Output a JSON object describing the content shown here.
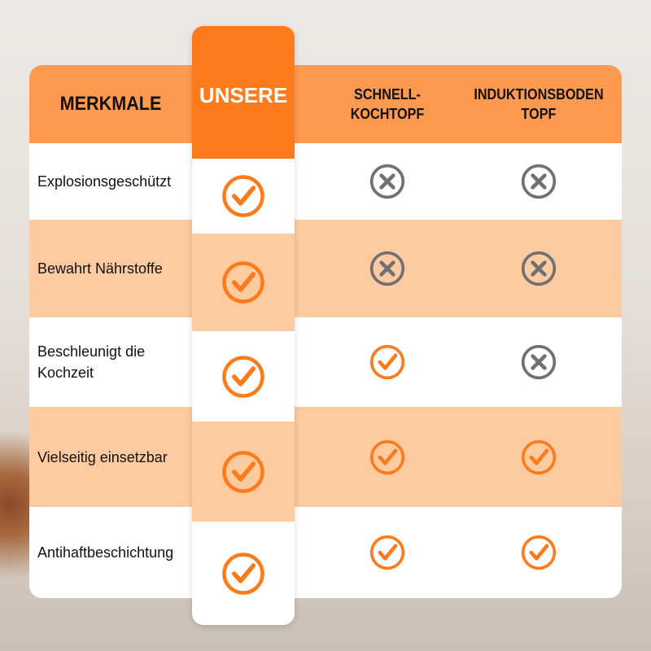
{
  "colors": {
    "header": "#fe9a50",
    "unsere": "#fe7b1c",
    "peach": "#fecaa0",
    "check": "#fe7b1c",
    "cross": "#707070"
  },
  "header": {
    "features": "MERKMALE",
    "ours": "UNSERE",
    "col2": "SCHNELL-\nKOCHTOPF",
    "col3": "INDUKTIONSBODEN\nTOPF"
  },
  "rows": [
    {
      "feature": "Explosionsgeschützt",
      "ours": "check",
      "col2": "cross",
      "col3": "cross"
    },
    {
      "feature": "Bewahrt Nährstoffe",
      "ours": "check",
      "col2": "cross",
      "col3": "cross"
    },
    {
      "feature": "Beschleunigt die Kochzeit",
      "ours": "check",
      "col2": "check",
      "col3": "cross"
    },
    {
      "feature": "Vielseitig einsetzbar",
      "ours": "check",
      "col2": "check",
      "col3": "check"
    },
    {
      "feature": "Antihaftbeschichtung",
      "ours": "check",
      "col2": "check",
      "col3": "check"
    }
  ]
}
